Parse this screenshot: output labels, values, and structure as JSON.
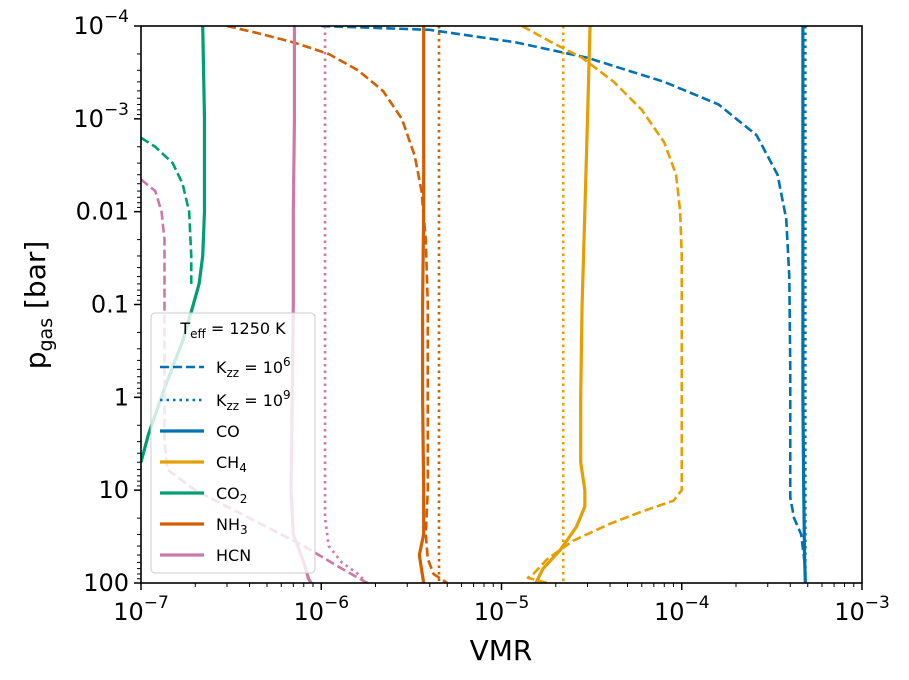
{
  "chart_data": {
    "type": "line",
    "title": "",
    "xlabel": "VMR",
    "ylabel": {
      "main": "p",
      "sub": "gas",
      "unit": "[bar]"
    },
    "xscale": "log",
    "yscale": "log",
    "xlim": [
      1e-07,
      0.001
    ],
    "ylim": [
      100,
      0.0001
    ],
    "y_inverted": true,
    "x_ticks": [
      {
        "value": 1e-07,
        "base": "10",
        "exp": "−7"
      },
      {
        "value": 1e-06,
        "base": "10",
        "exp": "−6"
      },
      {
        "value": 1e-05,
        "base": "10",
        "exp": "−5"
      },
      {
        "value": 0.0001,
        "base": "10",
        "exp": "−4"
      },
      {
        "value": 0.001,
        "base": "10",
        "exp": "−3"
      }
    ],
    "y_ticks": [
      {
        "value": 0.0001,
        "base": "10",
        "exp": "−4",
        "text": ""
      },
      {
        "value": 0.001,
        "base": "10",
        "exp": "−3",
        "text": ""
      },
      {
        "value": 0.01,
        "text": "0.01"
      },
      {
        "value": 0.1,
        "text": "0.1"
      },
      {
        "value": 1,
        "text": "1"
      },
      {
        "value": 10,
        "text": "10"
      },
      {
        "value": 100,
        "text": "100"
      }
    ],
    "legend": {
      "location": "lower-left",
      "title": {
        "main": "T",
        "sub": "eff",
        "rest": " = 1250 K"
      },
      "styles": [
        {
          "name": "kzz6",
          "main": "K",
          "sub": "zz",
          "rest": " = 10",
          "sup": "6",
          "dash": "dashed"
        },
        {
          "name": "kzz9",
          "main": "K",
          "sub": "zz",
          "rest": " = 10",
          "sup": "9",
          "dash": "dotted"
        }
      ],
      "species": [
        {
          "name": "co",
          "main": "CO",
          "sub": "",
          "color": "#0072b2"
        },
        {
          "name": "ch4",
          "main": "CH",
          "sub": "4",
          "color": "#e69f00"
        },
        {
          "name": "co2",
          "main": "CO",
          "sub": "2",
          "color": "#009e73"
        },
        {
          "name": "nh3",
          "main": "NH",
          "sub": "3",
          "color": "#d55e00"
        },
        {
          "name": "hcn",
          "main": "HCN",
          "sub": "",
          "color": "#cc79a7"
        }
      ]
    },
    "series": [
      {
        "species": "co",
        "style": "solid",
        "color": "#0072b2",
        "points": [
          [
            0.00047,
            0.0001
          ],
          [
            0.00047,
            0.001
          ],
          [
            0.00047,
            0.01
          ],
          [
            0.00047,
            1
          ],
          [
            0.000475,
            10
          ],
          [
            0.00048,
            50
          ],
          [
            0.000485,
            100
          ]
        ]
      },
      {
        "species": "co",
        "style": "dashed",
        "color": "#0072b2",
        "points": [
          [
            1e-06,
            0.0001
          ],
          [
            4e-06,
            0.00011
          ],
          [
            1.2e-05,
            0.00015
          ],
          [
            3e-05,
            0.00022
          ],
          [
            8e-05,
            0.0004
          ],
          [
            0.00016,
            0.0007
          ],
          [
            0.00026,
            0.0015
          ],
          [
            0.00034,
            0.004
          ],
          [
            0.00038,
            0.012
          ],
          [
            0.000395,
            0.05
          ],
          [
            0.0004,
            0.5
          ],
          [
            0.0004,
            12
          ],
          [
            0.00042,
            20
          ],
          [
            0.00046,
            30
          ],
          [
            0.00048,
            60
          ],
          [
            0.000485,
            100
          ]
        ]
      },
      {
        "species": "co",
        "style": "dotted",
        "color": "#0072b2",
        "points": [
          [
            0.000485,
            0.0001
          ],
          [
            0.000485,
            1
          ],
          [
            0.000485,
            10
          ],
          [
            0.000485,
            100
          ]
        ]
      },
      {
        "species": "ch4",
        "style": "solid",
        "color": "#e69f00",
        "points": [
          [
            3.1e-05,
            0.0001
          ],
          [
            3e-05,
            0.001
          ],
          [
            2.9e-05,
            0.01
          ],
          [
            2.8e-05,
            0.1
          ],
          [
            2.75e-05,
            1
          ],
          [
            2.75e-05,
            5
          ],
          [
            2.9e-05,
            10
          ],
          [
            2.9e-05,
            15
          ],
          [
            2.6e-05,
            25
          ],
          [
            2.1e-05,
            45
          ],
          [
            1.7e-05,
            70
          ],
          [
            1.55e-05,
            100
          ]
        ]
      },
      {
        "species": "ch4",
        "style": "dashed",
        "color": "#e69f00",
        "points": [
          [
            1.3e-05,
            0.0001
          ],
          [
            1.9e-05,
            0.00015
          ],
          [
            2.8e-05,
            0.00022
          ],
          [
            4.2e-05,
            0.0004
          ],
          [
            6e-05,
            0.0008
          ],
          [
            8e-05,
            0.0018
          ],
          [
            9.3e-05,
            0.004
          ],
          [
            9.8e-05,
            0.01
          ],
          [
            0.0001,
            0.03
          ],
          [
            0.0001,
            0.3
          ],
          [
            0.0001,
            10
          ],
          [
            9e-05,
            13
          ],
          [
            6e-05,
            17
          ],
          [
            4e-05,
            23
          ],
          [
            2.5e-05,
            35
          ],
          [
            1.8e-05,
            55
          ],
          [
            1.5e-05,
            80
          ],
          [
            1.4e-05,
            88
          ],
          [
            1.8e-05,
            100
          ]
        ]
      },
      {
        "species": "ch4",
        "style": "dotted",
        "color": "#e69f00",
        "points": [
          [
            2.2e-05,
            0.0001
          ],
          [
            2.2e-05,
            1
          ],
          [
            2.2e-05,
            100
          ]
        ]
      },
      {
        "species": "co2",
        "style": "solid",
        "color": "#009e73",
        "points": [
          [
            2.2e-07,
            0.0001
          ],
          [
            2.25e-07,
            0.001
          ],
          [
            2.25e-07,
            0.01
          ],
          [
            2.2e-07,
            0.03
          ],
          [
            2.1e-07,
            0.06
          ],
          [
            1.9e-07,
            0.12
          ],
          [
            1.7e-07,
            0.25
          ],
          [
            1.35e-07,
            0.8
          ],
          [
            1.1e-07,
            2.5
          ],
          [
            1e-07,
            5
          ]
        ]
      },
      {
        "species": "co2",
        "style": "dashed",
        "color": "#009e73",
        "points": [
          [
            1e-07,
            0.0016
          ],
          [
            1.2e-07,
            0.002
          ],
          [
            1.5e-07,
            0.003
          ],
          [
            1.7e-07,
            0.005
          ],
          [
            1.85e-07,
            0.01
          ],
          [
            1.9e-07,
            0.03
          ],
          [
            1.9e-07,
            0.06
          ]
        ]
      },
      {
        "species": "nh3",
        "style": "solid",
        "color": "#d55e00",
        "points": [
          [
            3.7e-06,
            0.0001
          ],
          [
            3.7e-06,
            0.01
          ],
          [
            3.65e-06,
            0.1
          ],
          [
            3.65e-06,
            1
          ],
          [
            3.7e-06,
            10
          ],
          [
            3.7e-06,
            30
          ],
          [
            3.5e-06,
            50
          ],
          [
            3.7e-06,
            100
          ]
        ]
      },
      {
        "species": "nh3",
        "style": "dashed",
        "color": "#d55e00",
        "points": [
          [
            3e-07,
            0.0001
          ],
          [
            4.5e-07,
            0.00012
          ],
          [
            7e-07,
            0.00015
          ],
          [
            1.1e-06,
            0.0002
          ],
          [
            1.6e-06,
            0.0003
          ],
          [
            2.2e-06,
            0.0005
          ],
          [
            2.8e-06,
            0.001
          ],
          [
            3.3e-06,
            0.0025
          ],
          [
            3.6e-06,
            0.006
          ],
          [
            3.8e-06,
            0.02
          ],
          [
            3.9e-06,
            0.1
          ],
          [
            3.9e-06,
            10
          ],
          [
            3.8e-06,
            30
          ],
          [
            3.9e-06,
            55
          ],
          [
            4.2e-06,
            80
          ],
          [
            5e-06,
            100
          ]
        ]
      },
      {
        "species": "nh3",
        "style": "dotted",
        "color": "#d55e00",
        "points": [
          [
            4.5e-06,
            0.0001
          ],
          [
            4.5e-06,
            1
          ],
          [
            4.5e-06,
            100
          ]
        ]
      },
      {
        "species": "hcn",
        "style": "solid",
        "color": "#cc79a7",
        "points": [
          [
            7.1e-07,
            0.0001
          ],
          [
            7.1e-07,
            0.001
          ],
          [
            7e-07,
            0.01
          ],
          [
            7e-07,
            0.1
          ],
          [
            6.9e-07,
            1
          ],
          [
            6.8e-07,
            10
          ],
          [
            7e-07,
            30
          ],
          [
            8e-07,
            60
          ],
          [
            8.5e-07,
            90
          ],
          [
            8.8e-07,
            100
          ]
        ]
      },
      {
        "species": "hcn",
        "style": "dashed",
        "color": "#cc79a7",
        "points": [
          [
            1e-07,
            0.0045
          ],
          [
            1.2e-07,
            0.006
          ],
          [
            1.3e-07,
            0.01
          ],
          [
            1.35e-07,
            0.02
          ],
          [
            1.35e-07,
            0.1
          ],
          [
            1.35e-07,
            3
          ],
          [
            1.4e-07,
            6
          ],
          [
            2e-07,
            10
          ],
          [
            4e-07,
            20
          ],
          [
            8e-07,
            40
          ],
          [
            1.3e-06,
            70
          ],
          [
            1.8e-06,
            100
          ]
        ]
      },
      {
        "species": "hcn",
        "style": "dotted",
        "color": "#cc79a7",
        "points": [
          [
            1.05e-06,
            0.0001
          ],
          [
            1.05e-06,
            0.001
          ],
          [
            1.05e-06,
            1
          ],
          [
            1.05e-06,
            20
          ],
          [
            1.1e-06,
            40
          ],
          [
            1.3e-06,
            60
          ],
          [
            1.6e-06,
            80
          ],
          [
            1.8e-06,
            100
          ]
        ]
      }
    ]
  }
}
